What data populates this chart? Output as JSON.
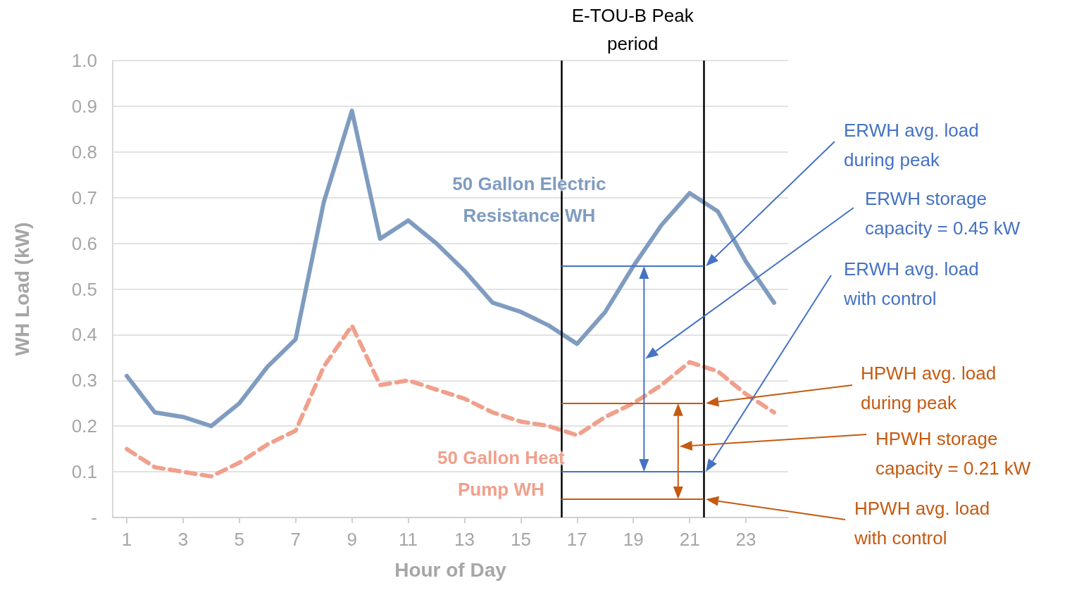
{
  "chart_data": {
    "type": "line",
    "xlabel": "Hour of Day",
    "ylabel": "WH Load (kW)",
    "x": [
      1,
      2,
      3,
      4,
      5,
      6,
      7,
      8,
      9,
      10,
      11,
      12,
      13,
      14,
      15,
      16,
      17,
      18,
      19,
      20,
      21,
      22,
      23,
      24
    ],
    "series": [
      {
        "name": "50 Gallon Electric Resistance WH",
        "color": "#7f9cc0",
        "line_style": "solid",
        "values": [
          0.31,
          0.23,
          0.22,
          0.2,
          0.25,
          0.33,
          0.39,
          0.69,
          0.89,
          0.61,
          0.65,
          0.6,
          0.54,
          0.47,
          0.45,
          0.42,
          0.38,
          0.45,
          0.55,
          0.64,
          0.71,
          0.67,
          0.56,
          0.47
        ]
      },
      {
        "name": "50 Gallon Heat Pump WH",
        "color": "#f0a08c",
        "line_style": "dashed",
        "values": [
          0.15,
          0.11,
          0.1,
          0.09,
          0.12,
          0.16,
          0.19,
          0.33,
          0.42,
          0.29,
          0.3,
          0.28,
          0.26,
          0.23,
          0.21,
          0.2,
          0.18,
          0.22,
          0.25,
          0.29,
          0.34,
          0.32,
          0.27,
          0.23
        ]
      }
    ],
    "xlim": [
      0.5,
      24.5
    ],
    "xticks": [
      1,
      3,
      5,
      7,
      9,
      11,
      13,
      15,
      17,
      19,
      21,
      23
    ],
    "ylim": [
      0,
      1
    ],
    "yticks": [
      {
        "value": 0,
        "label": "-"
      },
      0.1,
      0.2,
      0.3,
      0.4,
      0.5,
      0.6,
      0.7,
      0.8,
      0.9,
      {
        "value": 1,
        "label": "1.0"
      }
    ],
    "grid": "y",
    "legend": false,
    "marker": "none",
    "annotations": [
      "ERWH storage capacity = 0.45 kW",
      "HPWH storage capacity = 0.21 kW"
    ],
    "ref_lines": [
      {
        "axis": "x",
        "value": 16.45,
        "label": "E-TOU-B Peak period",
        "color": "#000000"
      },
      {
        "axis": "x",
        "value": 21.5,
        "color": "#000000"
      },
      {
        "axis": "y",
        "value": 0.55,
        "label": "ERWH avg. load during peak",
        "color": "#4472c4"
      },
      {
        "axis": "y",
        "value": 0.1,
        "label": "ERWH avg. load with control",
        "color": "#4472c4"
      },
      {
        "axis": "y",
        "value": 0.25,
        "label": "HPWH avg. load during peak",
        "color": "#c55a11"
      },
      {
        "axis": "y",
        "value": 0.04,
        "label": "HPWH avg. load with control",
        "color": "#c55a11"
      }
    ]
  }
}
